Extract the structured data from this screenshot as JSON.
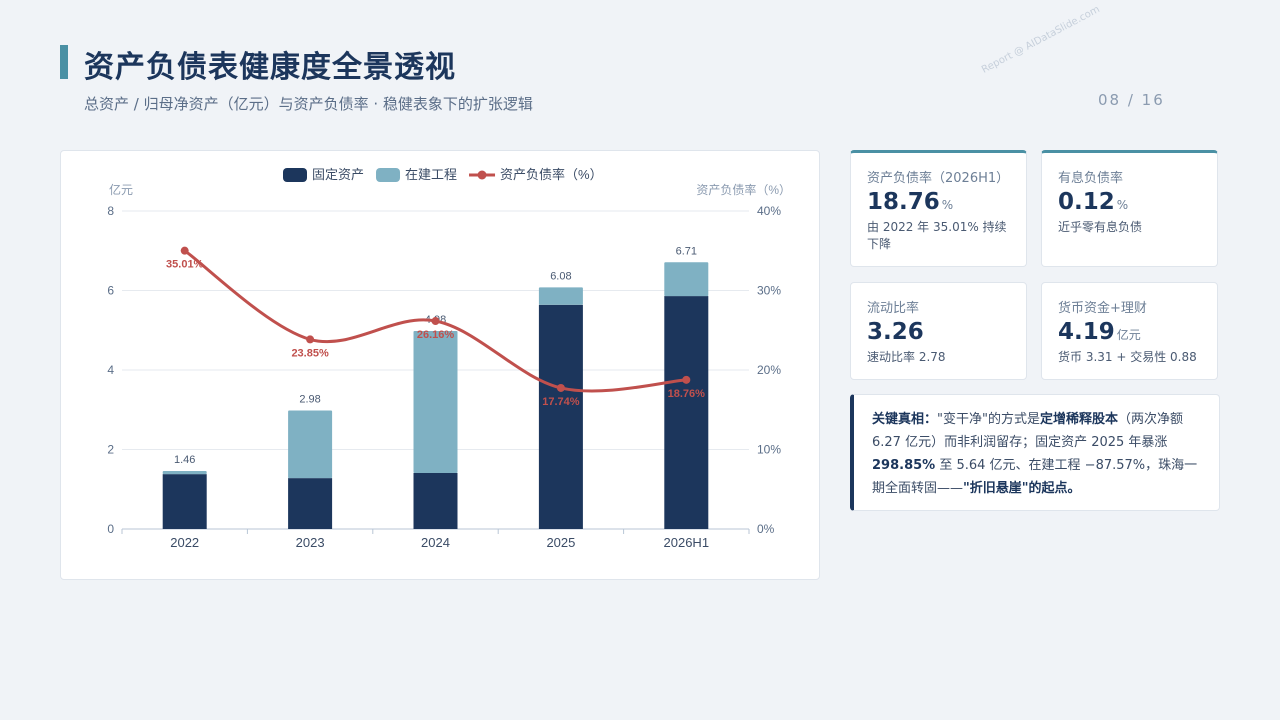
{
  "header": {
    "title": "资产负债表健康度全景透视",
    "subtitle": "总资产 / 归母净资产（亿元）与资产负债率 · 稳健表象下的扩张逻辑",
    "page": "08 / 16",
    "watermark": "Report @ AIDataSlide.com"
  },
  "colors": {
    "fixed": "#1c365c",
    "construction": "#7fb1c3",
    "ratio": "#c0504d",
    "accent": "#4a90a4"
  },
  "chart_data": {
    "type": "bar",
    "stacked": true,
    "categories": [
      "2022",
      "2023",
      "2024",
      "2025",
      "2026H1"
    ],
    "series": [
      {
        "name": "固定资产",
        "type": "bar",
        "values": [
          1.38,
          1.28,
          1.41,
          5.64,
          5.86
        ]
      },
      {
        "name": "在建工程",
        "type": "bar",
        "values": [
          0.08,
          1.7,
          3.57,
          0.44,
          0.85
        ]
      },
      {
        "name": "资产负债率（%）",
        "type": "line",
        "axis": "right",
        "values": [
          35.01,
          23.85,
          26.16,
          17.74,
          18.76
        ]
      }
    ],
    "totals": [
      "1.46",
      "2.98",
      "4.98",
      "6.08",
      "6.71"
    ],
    "ratio_labels": [
      "35.01%",
      "23.85%",
      "26.16%",
      "17.74%",
      "18.76%"
    ],
    "ylabel": "亿元",
    "y2label": "资产负债率（%）",
    "ylim": [
      0,
      8
    ],
    "y2lim": [
      0,
      40
    ],
    "yticks": [
      "0",
      "2",
      "4",
      "6",
      "8"
    ],
    "y2ticks": [
      "0%",
      "10%",
      "20%",
      "30%",
      "40%"
    ],
    "grid": true,
    "legend": "top-center"
  },
  "metrics": [
    {
      "label": "资产负债率（2026H1）",
      "value": "18.76",
      "unit": "%",
      "note": "由 2022 年 35.01% 持续下降"
    },
    {
      "label": "有息负债率",
      "value": "0.12",
      "unit": "%",
      "note": "近乎零有息负债"
    },
    {
      "label": "流动比率",
      "value": "3.26",
      "unit": "",
      "note": "速动比率 2.78"
    },
    {
      "label": "货币资金+理财",
      "value": "4.19",
      "unit": "亿元",
      "note": "货币 3.31 + 交易性 0.88"
    }
  ],
  "insight": {
    "lead": "关键真相：",
    "t1": "\"变干净\"的方式是",
    "b1": "定增稀释股本",
    "t2": "（两次净额 6.27 亿元）而非利润留存；固定资产 2025 年暴涨 ",
    "b2": "298.85%",
    "t3": " 至 5.64 亿元、在建工程 −87.57%，珠海一期全面转固——",
    "b3": "\"折旧悬崖\"的起点。"
  }
}
